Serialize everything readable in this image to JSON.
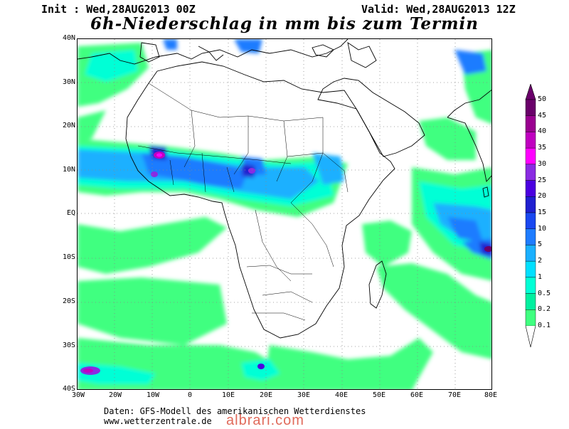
{
  "header": {
    "init": "Init : Wed,28AUG2013 00Z",
    "valid": "Valid: Wed,28AUG2013 12Z",
    "title": "6h-Niederschlag in mm bis zum Termin"
  },
  "map": {
    "lat_labels": [
      "40N",
      "30N",
      "20N",
      "10N",
      "EQ",
      "10S",
      "20S",
      "30S",
      "40S"
    ],
    "lon_labels": [
      "30W",
      "20W",
      "10W",
      "0",
      "10E",
      "20E",
      "30E",
      "40E",
      "50E",
      "60E",
      "70E",
      "80E"
    ]
  },
  "legend": {
    "levels": [
      "50",
      "45",
      "40",
      "35",
      "30",
      "25",
      "20",
      "15",
      "10",
      "5",
      "2",
      "1",
      "0.5",
      "0.2",
      "0.1"
    ],
    "colors": [
      "#6a006a",
      "#9a0090",
      "#c000c0",
      "#ff00ff",
      "#8a2be2",
      "#4b00e0",
      "#2020d0",
      "#1a48f0",
      "#1e7cff",
      "#1ab0ff",
      "#00e0ff",
      "#00ffd6",
      "#00f0a0",
      "#40ff80"
    ]
  },
  "footer": {
    "line1": "Daten: GFS-Modell des amerikanischen Wetterdienstes",
    "line2": "www.wetterzentrale.de"
  },
  "watermark": "albrari.com"
}
